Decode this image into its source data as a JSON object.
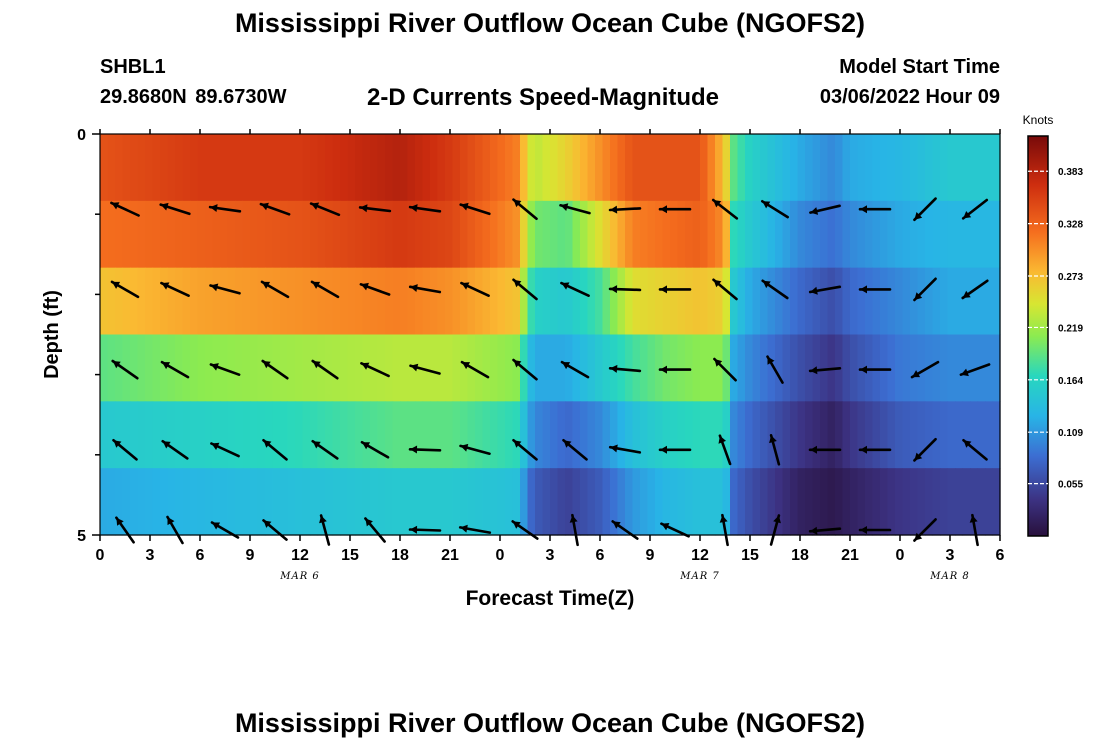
{
  "header": {
    "title": "Mississippi River Outflow Ocean Cube (NGOFS2)",
    "station_id": "SHBL1",
    "station_coords": "29.8680N  89.6730W",
    "plot_title": "2-D Currents Speed-Magnitude",
    "model_start_label": "Model Start Time",
    "model_start_value": "03/06/2022 Hour 09"
  },
  "footer": {
    "title": "Mississippi River Outflow Ocean Cube (NGOFS2)"
  },
  "chart_data": {
    "type": "heatmap",
    "title": "2-D Currents Speed-Magnitude",
    "xlabel": "Forecast Time(Z)",
    "ylabel": "Depth (ft)",
    "x_tick_labels": [
      "0",
      "3",
      "6",
      "9",
      "12",
      "15",
      "18",
      "21",
      "0",
      "3",
      "6",
      "9",
      "12",
      "15",
      "18",
      "21",
      "0",
      "3",
      "6"
    ],
    "x_range_hours": [
      0,
      54
    ],
    "date_labels": [
      {
        "label": "MAR 6",
        "hour": 12
      },
      {
        "label": "MAR 7",
        "hour": 36
      },
      {
        "label": "MAR 8",
        "hour": 51
      }
    ],
    "y_tick_labels": [
      "0",
      "5"
    ],
    "ylim": [
      0,
      5
    ],
    "y_minor_ticks": 4,
    "depth_layers": 5,
    "colorbar": {
      "unit": "Knots",
      "ticks": [
        0.383,
        0.328,
        0.273,
        0.219,
        0.164,
        0.109,
        0.055
      ],
      "min": 0.0,
      "max": 0.42
    },
    "speed_profiles": {
      "hours": [
        0,
        6,
        12,
        18,
        21,
        25,
        26,
        28,
        30,
        32,
        34,
        36,
        37.5,
        38,
        39,
        42,
        44,
        45,
        48,
        51,
        54
      ],
      "layers": [
        [
          0.34,
          0.36,
          0.36,
          0.385,
          0.36,
          0.31,
          0.23,
          0.26,
          0.3,
          0.34,
          0.34,
          0.34,
          0.27,
          0.19,
          0.16,
          0.12,
          0.1,
          0.12,
          0.13,
          0.15,
          0.15
        ],
        [
          0.32,
          0.33,
          0.34,
          0.36,
          0.35,
          0.3,
          0.2,
          0.19,
          0.25,
          0.31,
          0.32,
          0.33,
          0.3,
          0.17,
          0.15,
          0.1,
          0.085,
          0.1,
          0.12,
          0.13,
          0.13
        ],
        [
          0.27,
          0.29,
          0.3,
          0.31,
          0.3,
          0.27,
          0.16,
          0.15,
          0.18,
          0.25,
          0.26,
          0.27,
          0.26,
          0.15,
          0.12,
          0.08,
          0.06,
          0.08,
          0.1,
          0.12,
          0.12
        ],
        [
          0.19,
          0.21,
          0.22,
          0.23,
          0.23,
          0.21,
          0.12,
          0.12,
          0.15,
          0.18,
          0.2,
          0.21,
          0.21,
          0.12,
          0.1,
          0.06,
          0.04,
          0.06,
          0.09,
          0.1,
          0.1
        ],
        [
          0.15,
          0.16,
          0.17,
          0.19,
          0.19,
          0.17,
          0.1,
          0.08,
          0.1,
          0.14,
          0.16,
          0.17,
          0.17,
          0.1,
          0.08,
          0.04,
          0.02,
          0.04,
          0.07,
          0.08,
          0.08
        ],
        [
          0.12,
          0.13,
          0.14,
          0.15,
          0.15,
          0.14,
          0.07,
          0.05,
          0.07,
          0.11,
          0.13,
          0.14,
          0.14,
          0.08,
          0.06,
          0.02,
          0.01,
          0.02,
          0.04,
          0.05,
          0.05
        ]
      ]
    },
    "vectors": {
      "hours": [
        1.5,
        4.5,
        7.5,
        10.5,
        13.5,
        16.5,
        19.5,
        22.5,
        25.5,
        28.5,
        31.5,
        34.5,
        37.5,
        40.5,
        43.5,
        46.5,
        49.5,
        52.5
      ],
      "directions_deg": [
        [
          155,
          162,
          172,
          160,
          158,
          173,
          172,
          162,
          140,
          165,
          183,
          180,
          142,
          148,
          193,
          180,
          225,
          218
        ],
        [
          150,
          155,
          165,
          150,
          150,
          160,
          170,
          155,
          140,
          155,
          178,
          180,
          140,
          145,
          190,
          180,
          225,
          215
        ],
        [
          145,
          150,
          160,
          145,
          145,
          155,
          165,
          150,
          140,
          150,
          175,
          180,
          135,
          120,
          185,
          180,
          210,
          200
        ],
        [
          140,
          145,
          155,
          140,
          145,
          150,
          178,
          165,
          140,
          140,
          170,
          180,
          110,
          105,
          180,
          180,
          225,
          140
        ],
        [
          125,
          120,
          150,
          140,
          105,
          130,
          178,
          170,
          145,
          100,
          145,
          155,
          100,
          75,
          185,
          180,
          225,
          100
        ]
      ]
    }
  }
}
